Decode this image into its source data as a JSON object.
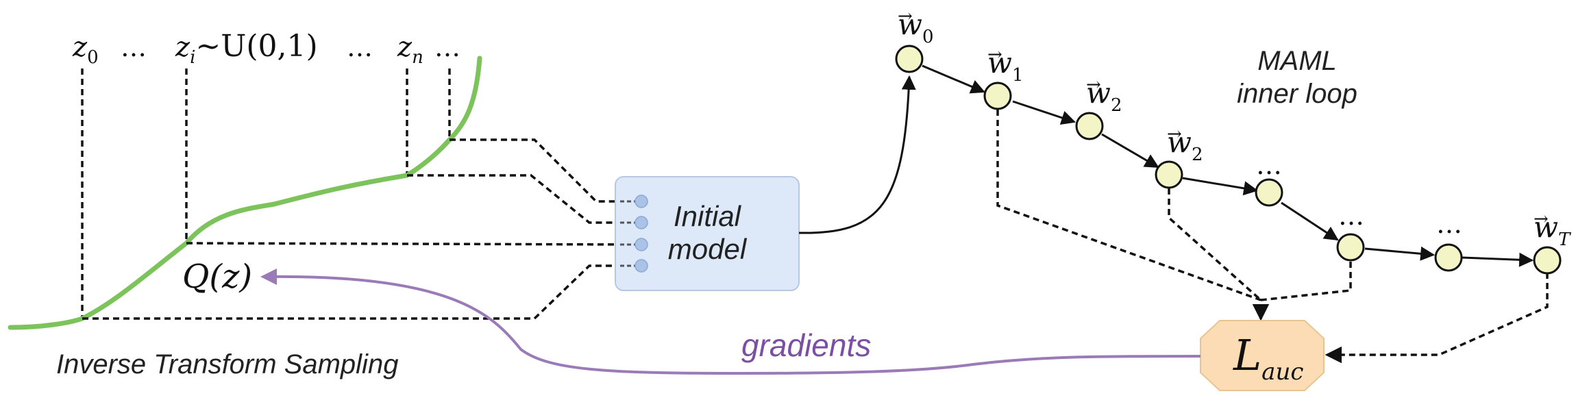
{
  "sampling": {
    "z0_base": "z",
    "z0_sub": "0",
    "dots1": "…",
    "zi_base": "z",
    "zi_sub": "i",
    "zi_dist": "~U(0,1)",
    "dots2": "…",
    "zn_base": "z",
    "zn_sub": "n",
    "dots3": "…",
    "q_label": "Q(z)",
    "caption": "Inverse Transform Sampling"
  },
  "model": {
    "line1": "Initial",
    "line2": "model"
  },
  "maml": {
    "title_line1": "MAML",
    "title_line2": "inner loop",
    "nodes": [
      {
        "base": "w",
        "sub": "0"
      },
      {
        "base": "w",
        "sub": "1"
      },
      {
        "base": "w",
        "sub": "2"
      },
      {
        "base": "w",
        "sub": "2"
      },
      {
        "base": "…",
        "sub": ""
      },
      {
        "base": "…",
        "sub": ""
      },
      {
        "base": "…",
        "sub": ""
      },
      {
        "base": "w",
        "sub": "T"
      }
    ]
  },
  "loss": {
    "base": "L",
    "sub": "auc"
  },
  "gradients_label": "gradients",
  "colors": {
    "curve": "#7dc35b",
    "gradient_arrow": "#9b7ab8",
    "gradient_text": "#7b4fa3",
    "model_fill": "#dde9f8",
    "loss_fill": "#fbdcb4",
    "node_fill": "#f4f5c7"
  }
}
